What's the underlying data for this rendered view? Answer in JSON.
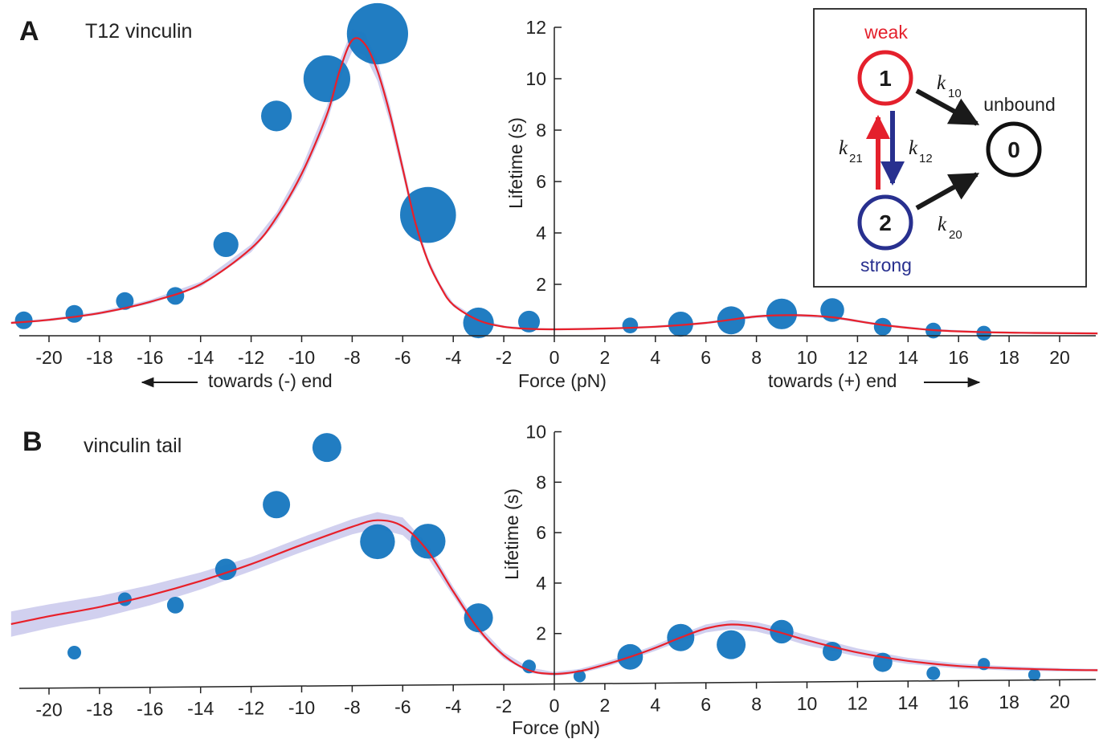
{
  "panel_a": {
    "letter": "A",
    "title": "T12 vinculin",
    "minus_end_label": "towards (-) end",
    "plus_end_label": "towards (+) end"
  },
  "panel_b": {
    "letter": "B",
    "title": "vinculin tail"
  },
  "inset": {
    "state1_num": "1",
    "state1_label": "weak",
    "state2_num": "2",
    "state2_label": "strong",
    "state0_num": "0",
    "state0_label": "unbound",
    "rates": [
      {
        "symbol": "k",
        "sub": "10"
      },
      {
        "symbol": "k",
        "sub": "21"
      },
      {
        "symbol": "k",
        "sub": "12"
      },
      {
        "symbol": "k",
        "sub": "20"
      }
    ],
    "colors": {
      "weak": "#e4202c",
      "strong": "#28308f",
      "unbound": "#111111"
    }
  },
  "colors": {
    "points": "#1878c0",
    "fit": "#e8202a",
    "band": "#c9c8ec"
  },
  "chart_data": [
    {
      "type": "scatter",
      "xlabel": "Force (pN)",
      "ylabel": "Lifetime (s)",
      "xlim": [
        -21.5,
        21.5
      ],
      "ylim": [
        0,
        12
      ],
      "xticks": [
        -20,
        -18,
        -16,
        -14,
        -12,
        -10,
        -8,
        -6,
        -4,
        -2,
        0,
        2,
        4,
        6,
        8,
        10,
        12,
        14,
        16,
        18,
        20
      ],
      "yticks": [
        2,
        4,
        6,
        8,
        10,
        12
      ],
      "points": [
        {
          "x": -21,
          "y": 0.6,
          "size": 1
        },
        {
          "x": -19,
          "y": 0.85,
          "size": 1
        },
        {
          "x": -17,
          "y": 1.35,
          "size": 1
        },
        {
          "x": -15,
          "y": 1.55,
          "size": 1
        },
        {
          "x": -13,
          "y": 3.55,
          "size": 2
        },
        {
          "x": -11,
          "y": 8.55,
          "size": 3
        },
        {
          "x": -9,
          "y": 10.0,
          "size": 7
        },
        {
          "x": -7,
          "y": 11.75,
          "size": 12
        },
        {
          "x": -5,
          "y": 4.7,
          "size": 10
        },
        {
          "x": -3,
          "y": 0.5,
          "size": 3
        },
        {
          "x": -1,
          "y": 0.55,
          "size": 1.5
        },
        {
          "x": 3,
          "y": 0.4,
          "size": 0.8
        },
        {
          "x": 5,
          "y": 0.45,
          "size": 2
        },
        {
          "x": 7,
          "y": 0.6,
          "size": 2.5
        },
        {
          "x": 9,
          "y": 0.85,
          "size": 3
        },
        {
          "x": 11,
          "y": 1.0,
          "size": 1.8
        },
        {
          "x": 13,
          "y": 0.35,
          "size": 1
        },
        {
          "x": 15,
          "y": 0.2,
          "size": 0.8
        },
        {
          "x": 17,
          "y": 0.1,
          "size": 0.7
        }
      ],
      "fit": [
        [
          -21.5,
          0.5
        ],
        [
          -20,
          0.62
        ],
        [
          -18,
          0.88
        ],
        [
          -16,
          1.32
        ],
        [
          -14,
          2.0
        ],
        [
          -12,
          3.4
        ],
        [
          -11,
          4.6
        ],
        [
          -10,
          6.3
        ],
        [
          -9,
          8.6
        ],
        [
          -8.5,
          10.3
        ],
        [
          -8,
          11.5
        ],
        [
          -7.5,
          11.35
        ],
        [
          -7,
          10.3
        ],
        [
          -6.5,
          8.6
        ],
        [
          -6,
          6.5
        ],
        [
          -5.5,
          4.4
        ],
        [
          -5,
          2.9
        ],
        [
          -4.5,
          1.9
        ],
        [
          -4,
          1.2
        ],
        [
          -3,
          0.6
        ],
        [
          -2,
          0.35
        ],
        [
          -1,
          0.27
        ],
        [
          0,
          0.25
        ],
        [
          2,
          0.28
        ],
        [
          4,
          0.35
        ],
        [
          6,
          0.5
        ],
        [
          8,
          0.75
        ],
        [
          9.5,
          0.8
        ],
        [
          11,
          0.72
        ],
        [
          13,
          0.42
        ],
        [
          15,
          0.22
        ],
        [
          17,
          0.14
        ],
        [
          19,
          0.11
        ],
        [
          21.5,
          0.09
        ]
      ]
    },
    {
      "type": "scatter",
      "xlabel": "Force (pN)",
      "ylabel": "Lifetime (s)",
      "xlim": [
        -21.5,
        21.5
      ],
      "ylim": [
        0,
        10
      ],
      "xticks": [
        -20,
        -18,
        -16,
        -14,
        -12,
        -10,
        -8,
        -6,
        -4,
        -2,
        0,
        2,
        4,
        6,
        8,
        10,
        12,
        14,
        16,
        18,
        20
      ],
      "yticks": [
        2,
        4,
        6,
        8,
        10
      ],
      "points": [
        {
          "x": -19,
          "y": 1.4,
          "size": 1
        },
        {
          "x": -17,
          "y": 3.5,
          "size": 1
        },
        {
          "x": -15,
          "y": 3.25,
          "size": 1.5
        },
        {
          "x": -13,
          "y": 4.65,
          "size": 2.5
        },
        {
          "x": -11,
          "y": 7.2,
          "size": 4
        },
        {
          "x": -9,
          "y": 9.45,
          "size": 4.5
        },
        {
          "x": -7,
          "y": 5.7,
          "size": 6.5
        },
        {
          "x": -5,
          "y": 5.7,
          "size": 6.5
        },
        {
          "x": -3,
          "y": 2.65,
          "size": 4.5
        },
        {
          "x": -1,
          "y": 0.7,
          "size": 1
        },
        {
          "x": 1,
          "y": 0.3,
          "size": 0.8
        },
        {
          "x": 3,
          "y": 1.05,
          "size": 3.5
        },
        {
          "x": 5,
          "y": 1.8,
          "size": 4
        },
        {
          "x": 7,
          "y": 1.5,
          "size": 4.5
        },
        {
          "x": 9,
          "y": 2.0,
          "size": 3
        },
        {
          "x": 11,
          "y": 1.2,
          "size": 2
        },
        {
          "x": 13,
          "y": 0.75,
          "size": 2
        },
        {
          "x": 15,
          "y": 0.3,
          "size": 1
        },
        {
          "x": 17,
          "y": 0.65,
          "size": 0.8
        },
        {
          "x": 19,
          "y": 0.2,
          "size": 0.8
        }
      ],
      "fit": [
        [
          -21.5,
          2.55
        ],
        [
          -20,
          2.85
        ],
        [
          -18,
          3.2
        ],
        [
          -16,
          3.65
        ],
        [
          -14,
          4.2
        ],
        [
          -12,
          4.85
        ],
        [
          -10,
          5.6
        ],
        [
          -8,
          6.3
        ],
        [
          -7,
          6.55
        ],
        [
          -6,
          6.3
        ],
        [
          -5,
          5.3
        ],
        [
          -4,
          3.7
        ],
        [
          -3,
          2.2
        ],
        [
          -2,
          1.15
        ],
        [
          -1,
          0.55
        ],
        [
          0,
          0.4
        ],
        [
          1,
          0.5
        ],
        [
          2,
          0.75
        ],
        [
          3,
          1.05
        ],
        [
          4,
          1.4
        ],
        [
          5,
          1.8
        ],
        [
          6,
          2.15
        ],
        [
          7,
          2.3
        ],
        [
          8,
          2.2
        ],
        [
          9,
          1.95
        ],
        [
          10,
          1.65
        ],
        [
          12,
          1.15
        ],
        [
          14,
          0.8
        ],
        [
          16,
          0.58
        ],
        [
          18,
          0.47
        ],
        [
          20,
          0.4
        ],
        [
          21.5,
          0.37
        ]
      ],
      "band_half_width": [
        [
          -21.5,
          0.5
        ],
        [
          -16,
          0.4
        ],
        [
          -12,
          0.28
        ],
        [
          -8,
          0.3
        ],
        [
          -6,
          0.35
        ],
        [
          -4,
          0.18
        ],
        [
          0,
          0.08
        ],
        [
          4,
          0.12
        ],
        [
          7,
          0.18
        ],
        [
          10,
          0.2
        ],
        [
          14,
          0.12
        ],
        [
          21.5,
          0.05
        ]
      ]
    }
  ]
}
